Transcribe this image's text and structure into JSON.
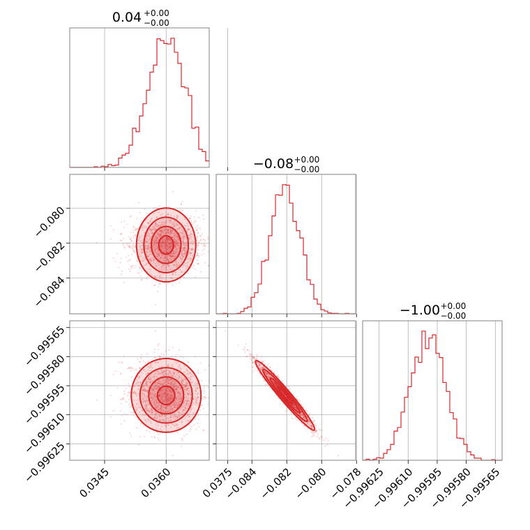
{
  "figure": {
    "type": "corner-plot",
    "color": "#d62728"
  },
  "chart_data": {
    "type": "corner",
    "n_params": 3,
    "grid": true,
    "parameters": [
      {
        "title_value": "0.04",
        "title_plus": "+0.00",
        "title_minus": "−0.00",
        "range": [
          0.03365,
          0.03705
        ],
        "ticks": [
          0.0345,
          0.036,
          0.0375
        ],
        "tick_labels": [
          "0.0345",
          "0.0360",
          "0.0375"
        ],
        "mean": 0.036,
        "sigma": 0.00045
      },
      {
        "title_value": "−0.08",
        "title_plus": "+0.00",
        "title_minus": "−0.00",
        "range": [
          -0.08605,
          -0.07805
        ],
        "ticks": [
          -0.084,
          -0.082,
          -0.08,
          -0.078
        ],
        "tick_labels": [
          "−0.084",
          "−0.082",
          "−0.080",
          "−0.078"
        ],
        "mean": -0.0821,
        "sigma": 0.00085
      },
      {
        "title_value": "−1.00",
        "title_plus": "+0.00",
        "title_minus": "−0.00",
        "range": [
          -0.996335,
          -0.995615
        ],
        "ticks": [
          -0.99625,
          -0.9961,
          -0.99595,
          -0.9958,
          -0.99565
        ],
        "tick_labels": [
          "−0.99625",
          "−0.99610",
          "−0.99595",
          "−0.99580",
          "−0.99565"
        ],
        "mean": -0.996,
        "sigma": 9e-05
      }
    ],
    "correlations": {
      "1-0": 0.0,
      "2-0": 0.0,
      "2-1": -0.97
    }
  }
}
